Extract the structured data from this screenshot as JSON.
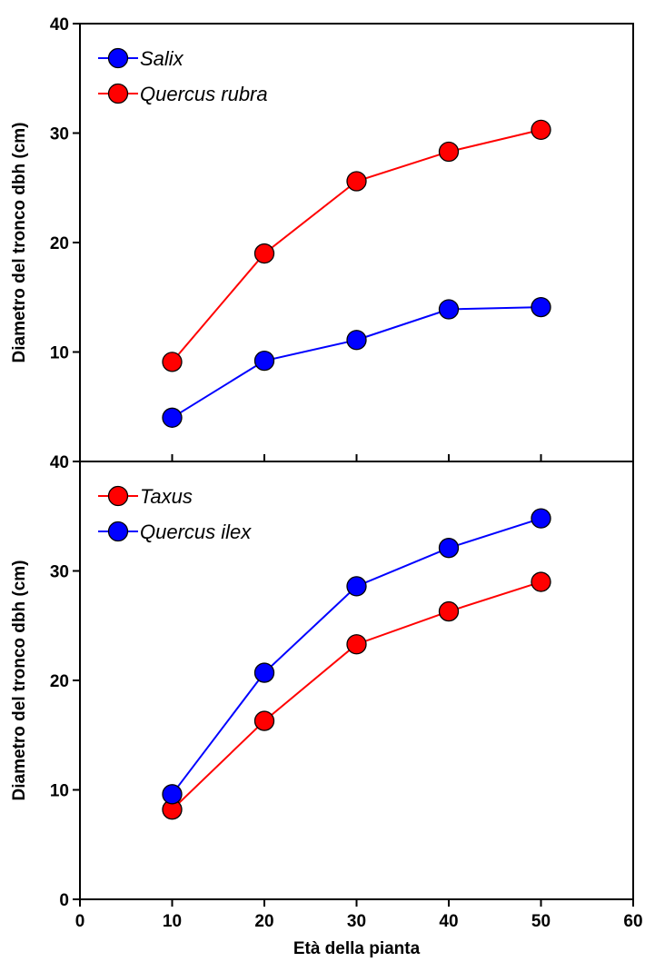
{
  "chart_data": [
    {
      "type": "line",
      "xlabel": "",
      "ylabel": "Diametro del tronco dbh (cm)",
      "xlim": [
        0,
        60
      ],
      "ylim": [
        0,
        40
      ],
      "y_tick_labels": [
        "40",
        "30",
        "20",
        "10"
      ],
      "x": [
        10,
        20,
        30,
        40,
        50
      ],
      "grid": false,
      "legend_position": "top-left",
      "series": [
        {
          "name": "Salix",
          "color": "#0000ff",
          "values": [
            4.0,
            9.2,
            11.1,
            13.9,
            14.1
          ]
        },
        {
          "name": "Quercus rubra",
          "color": "#ff0000",
          "values": [
            9.1,
            19.0,
            25.6,
            28.3,
            30.3
          ]
        }
      ]
    },
    {
      "type": "line",
      "xlabel": "Età della pianta",
      "ylabel": "Diametro del tronco dbh (cm)",
      "xlim": [
        0,
        60
      ],
      "ylim": [
        0,
        40
      ],
      "y_tick_labels": [
        "40",
        "30",
        "20",
        "10",
        "0"
      ],
      "x_tick_labels": [
        "0",
        "10",
        "20",
        "30",
        "40",
        "50",
        "60"
      ],
      "x": [
        10,
        20,
        30,
        40,
        50
      ],
      "grid": false,
      "legend_position": "top-left",
      "series": [
        {
          "name": "Taxus",
          "color": "#ff0000",
          "values": [
            8.2,
            16.3,
            23.3,
            26.3,
            29.0
          ]
        },
        {
          "name": "Quercus ilex",
          "color": "#0000ff",
          "values": [
            9.6,
            20.7,
            28.6,
            32.1,
            34.8
          ]
        }
      ]
    }
  ]
}
